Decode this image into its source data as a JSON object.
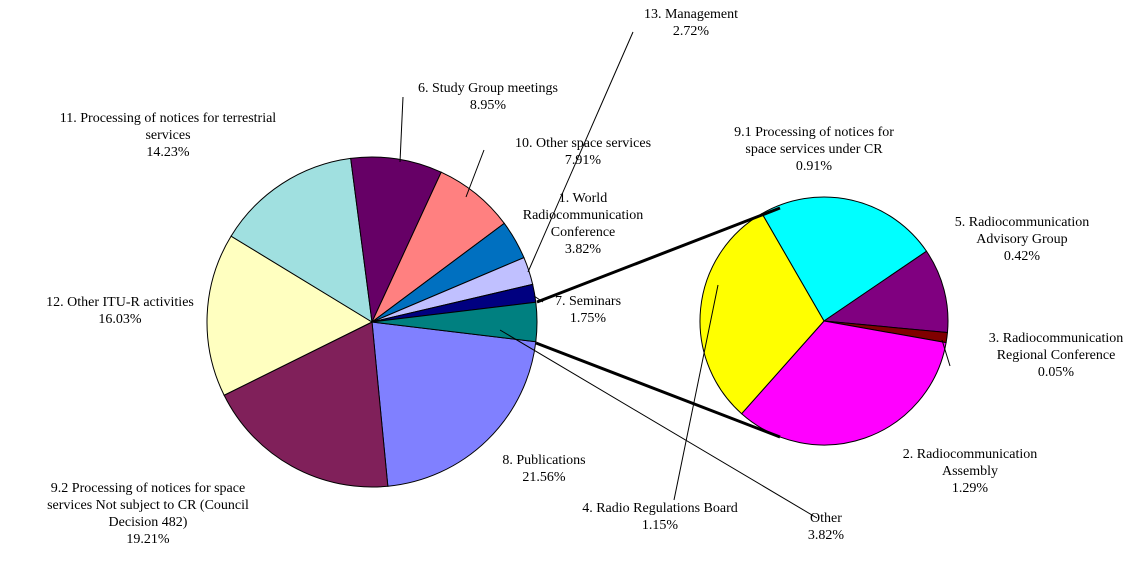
{
  "chart_data": {
    "type": "pie-of-pie",
    "categories": [
      "8. Publications",
      "9.2 Processing of notices for space services Not subject to CR (Council Decision 482)",
      "12. Other ITU-R activities",
      "11. Processing of notices for terrestrial services",
      "6. Study Group meetings",
      "10. Other space services",
      "1. World Radiocommunication Conference",
      "13. Management",
      "7. Seminars",
      "Other"
    ],
    "values": [
      21.56,
      19.21,
      16.03,
      14.23,
      8.95,
      7.91,
      3.82,
      2.72,
      1.75,
      3.82
    ],
    "value_labels": [
      "21.56%",
      "19.21%",
      "16.03%",
      "14.23%",
      "8.95%",
      "7.91%",
      "3.82%",
      "2.72%",
      "1.75%",
      "3.82%"
    ],
    "colors": [
      "#8080ff",
      "#80205a",
      "#ffffc0",
      "#a0e0e0",
      "#660066",
      "#ff8080",
      "#0070c0",
      "#c0c0ff",
      "#000080",
      "#008080"
    ],
    "secondary": {
      "categories": [
        "9.1 Processing of notices for space services under CR",
        "5. Radiocommunication Advisory Group",
        "3. Radiocommunication Regional Conference",
        "2. Radiocommunication Assembly",
        "4. Radio Regulations Board"
      ],
      "values": [
        0.91,
        0.42,
        0.05,
        1.29,
        1.15
      ],
      "value_labels": [
        "0.91%",
        "0.42%",
        "0.05%",
        "1.29%",
        "1.15%"
      ],
      "colors": [
        "#00ffff",
        "#800080",
        "#800000",
        "#ff00ff",
        "#ffff00"
      ]
    }
  }
}
